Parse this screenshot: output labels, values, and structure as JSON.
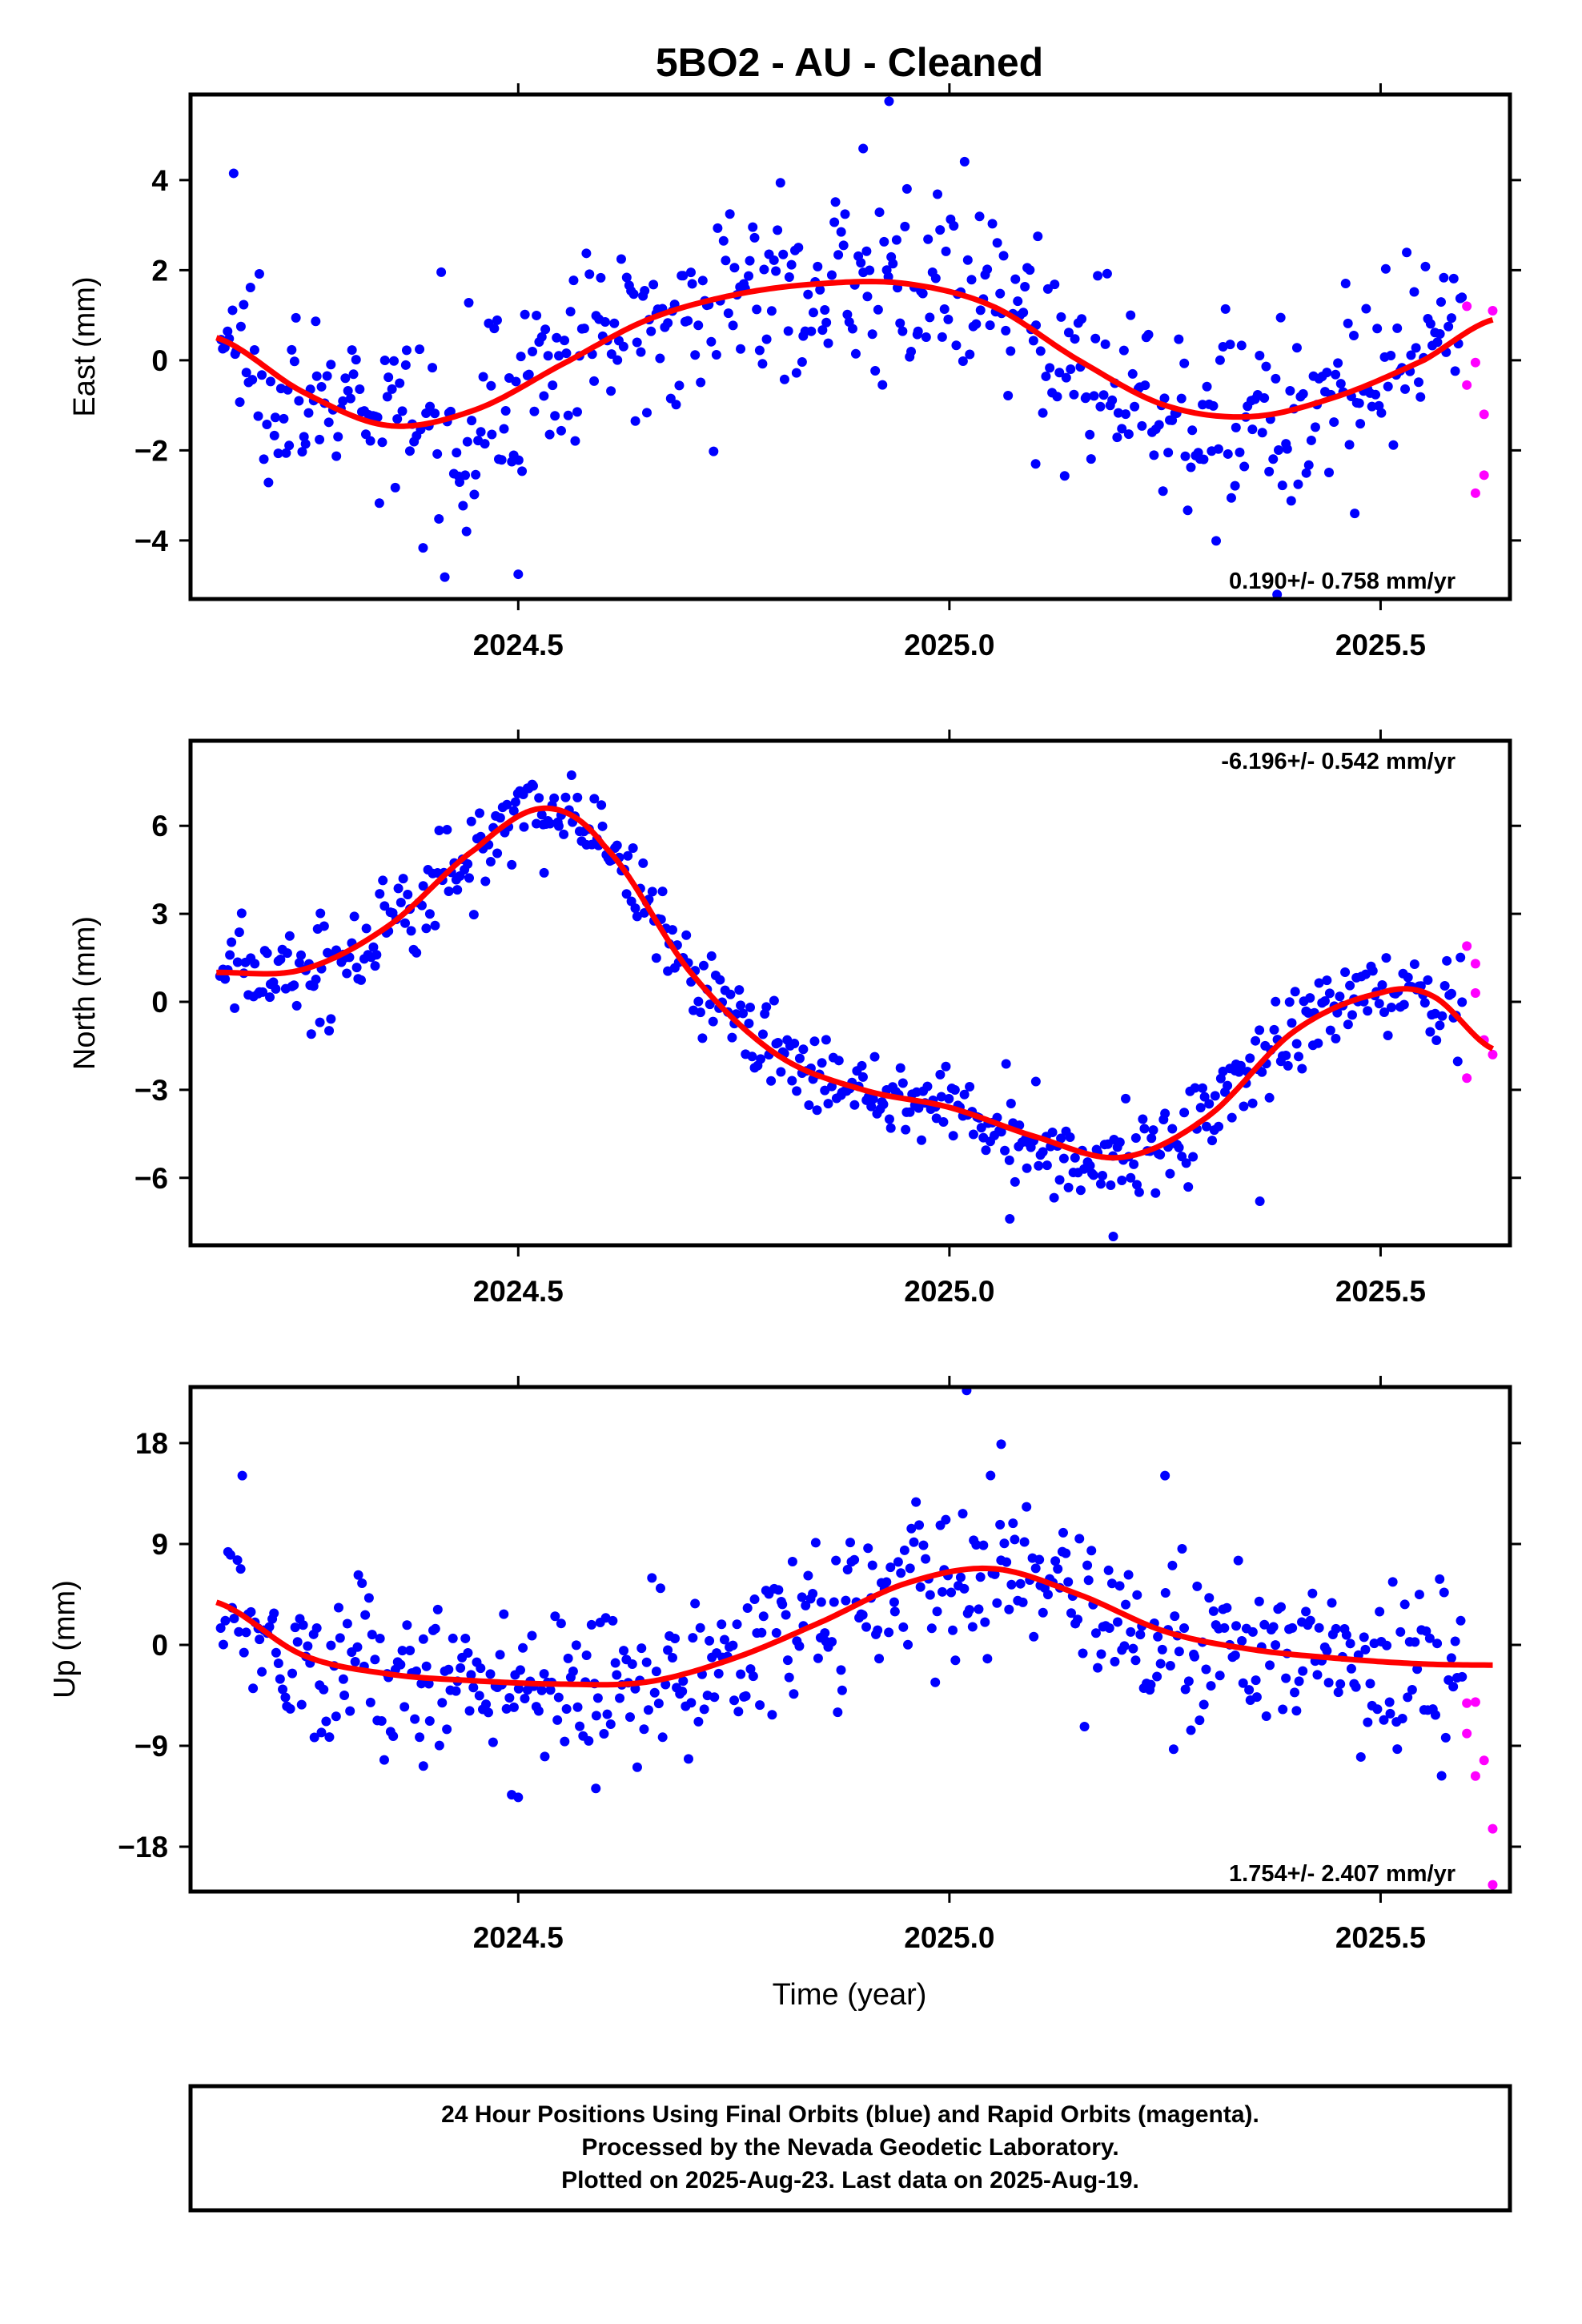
{
  "title": "5BO2  - AU - Cleaned",
  "xlabel": "Time (year)",
  "colors": {
    "final": "#0000ff",
    "rapid": "#ff00ff",
    "model": "#ff0000",
    "frame": "#000000"
  },
  "footer": {
    "line1": "24 Hour Positions Using Final Orbits (blue) and Rapid Orbits (magenta).",
    "line2": "Processed by the Nevada Geodetic Laboratory.",
    "line3": "Plotted on 2025-Aug-23. Last data on 2025-Aug-19."
  },
  "chart_data": [
    {
      "type": "scatter",
      "component": "east",
      "ylabel": "East (mm)",
      "rate": "0.190+/- 0.758 mm/yr",
      "xlim": [
        2024.12,
        2025.65
      ],
      "ylim": [
        -5.3,
        5.9
      ],
      "xticks": [
        2024.5,
        2025.0,
        2025.5
      ],
      "xtick_labels": [
        "2024.5",
        "2025.0",
        "2025.5"
      ],
      "yticks": [
        -4,
        -2,
        0,
        2,
        4
      ],
      "ytick_labels": [
        "−4",
        "−2",
        "0",
        "2",
        "4"
      ],
      "fit": {
        "x": [
          2024.15,
          2024.25,
          2024.35,
          2024.45,
          2024.55,
          2024.65,
          2024.75,
          2024.85,
          2024.95,
          2025.05,
          2025.15,
          2025.25,
          2025.35,
          2025.45,
          2025.55,
          2025.63
        ],
        "y": [
          0.5,
          -0.7,
          -1.45,
          -1.1,
          -0.1,
          0.9,
          1.45,
          1.7,
          1.7,
          1.2,
          0.0,
          -1.0,
          -1.25,
          -0.8,
          0.0,
          0.9
        ]
      },
      "noise": 1.0,
      "outliers": [
        [
          2024.17,
          4.15
        ],
        [
          2024.5,
          -4.75
        ],
        [
          2024.93,
          5.75
        ],
        [
          2024.9,
          4.7
        ],
        [
          2025.1,
          -2.3
        ],
        [
          2025.38,
          -5.2
        ],
        [
          2024.44,
          -3.8
        ],
        [
          2025.47,
          -3.4
        ]
      ],
      "rapid": [
        [
          2025.6,
          1.2
        ],
        [
          2025.6,
          -0.55
        ],
        [
          2025.61,
          -2.95
        ],
        [
          2025.61,
          -0.05
        ],
        [
          2025.62,
          -2.55
        ],
        [
          2025.62,
          -1.2
        ],
        [
          2025.63,
          1.1
        ]
      ]
    },
    {
      "type": "scatter",
      "component": "north",
      "ylabel": "North (mm)",
      "rate": "-6.196+/- 0.542 mm/yr",
      "xlim": [
        2024.12,
        2025.65
      ],
      "ylim": [
        -8.3,
        8.9
      ],
      "xticks": [
        2024.5,
        2025.0,
        2025.5
      ],
      "xtick_labels": [
        "2024.5",
        "2025.0",
        "2025.5"
      ],
      "yticks": [
        -6,
        -3,
        0,
        3,
        6
      ],
      "ytick_labels": [
        "−6",
        "−3",
        "0",
        "3",
        "6"
      ],
      "fit": {
        "x": [
          2024.15,
          2024.25,
          2024.35,
          2024.45,
          2024.53,
          2024.6,
          2024.7,
          2024.8,
          2024.9,
          2025.0,
          2025.1,
          2025.2,
          2025.3,
          2025.4,
          2025.5,
          2025.56,
          2025.63
        ],
        "y": [
          1.0,
          1.1,
          2.6,
          5.2,
          6.6,
          5.3,
          1.0,
          -1.8,
          -3.0,
          -3.6,
          -4.6,
          -5.3,
          -3.9,
          -1.0,
          0.3,
          0.2,
          -1.6
        ]
      },
      "noise": 0.8,
      "outliers": [
        [
          2024.26,
          -1.1
        ],
        [
          2024.27,
          -0.7
        ],
        [
          2024.53,
          4.4
        ],
        [
          2025.07,
          -7.4
        ],
        [
          2025.19,
          -8.0
        ],
        [
          2025.36,
          -6.8
        ]
      ],
      "rapid": [
        [
          2025.6,
          1.9
        ],
        [
          2025.6,
          -2.6
        ],
        [
          2025.61,
          1.3
        ],
        [
          2025.61,
          0.3
        ],
        [
          2025.62,
          -1.3
        ],
        [
          2025.63,
          -1.8
        ]
      ]
    },
    {
      "type": "scatter",
      "component": "up",
      "ylabel": "Up (mm)",
      "rate": "1.754+/- 2.407 mm/yr",
      "xlim": [
        2024.12,
        2025.65
      ],
      "ylim": [
        -22,
        23
      ],
      "xticks": [
        2024.5,
        2025.0,
        2025.5
      ],
      "xtick_labels": [
        "2024.5",
        "2025.0",
        "2025.5"
      ],
      "yticks": [
        -18,
        -9,
        0,
        9,
        18
      ],
      "ytick_labels": [
        "−18",
        "−9",
        "0",
        "9",
        "18"
      ],
      "fit": {
        "x": [
          2024.15,
          2024.25,
          2024.35,
          2024.45,
          2024.55,
          2024.65,
          2024.75,
          2024.85,
          2024.95,
          2025.05,
          2025.15,
          2025.25,
          2025.35,
          2025.45,
          2025.55,
          2025.63
        ],
        "y": [
          3.8,
          -0.9,
          -2.6,
          -3.2,
          -3.5,
          -3.3,
          -1.2,
          2.0,
          5.5,
          6.8,
          4.5,
          1.2,
          -0.4,
          -1.2,
          -1.7,
          -1.8
        ]
      },
      "noise": 3.5,
      "outliers": [
        [
          2025.02,
          22.7
        ],
        [
          2025.06,
          17.9
        ],
        [
          2024.18,
          15.1
        ],
        [
          2025.25,
          15.1
        ],
        [
          2024.5,
          -13.6
        ],
        [
          2024.59,
          -12.8
        ],
        [
          2025.26,
          -9.3
        ],
        [
          2024.39,
          -10.8
        ]
      ],
      "rapid": [
        [
          2025.6,
          -5.2
        ],
        [
          2025.6,
          -7.9
        ],
        [
          2025.61,
          -5.1
        ],
        [
          2025.61,
          -11.7
        ],
        [
          2025.62,
          -10.3
        ],
        [
          2025.63,
          -16.4
        ],
        [
          2025.63,
          -21.4
        ]
      ]
    }
  ]
}
